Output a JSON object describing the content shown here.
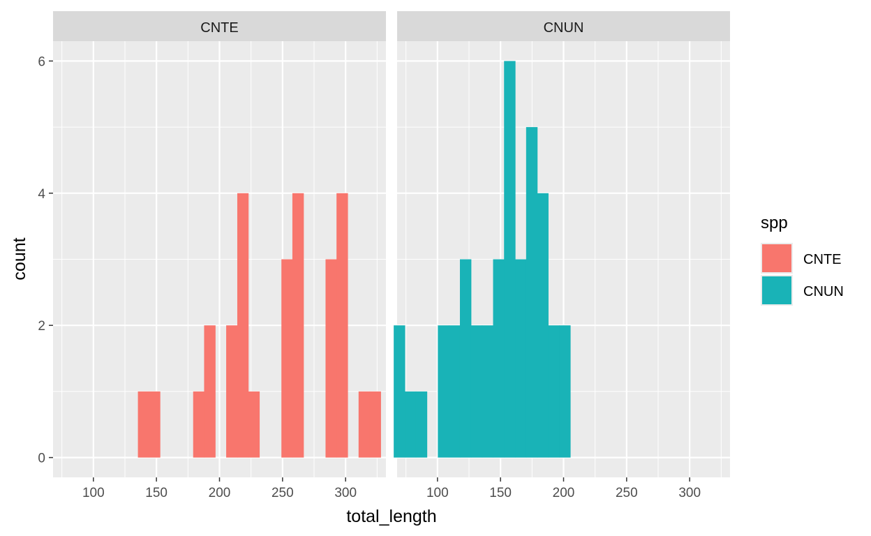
{
  "chart_data": {
    "type": "histogram",
    "xlabel": "total_length",
    "ylabel": "count",
    "xlim": [
      68,
      332
    ],
    "ylim": [
      -0.3,
      6.3
    ],
    "x_ticks": [
      100,
      150,
      200,
      250,
      300
    ],
    "y_ticks": [
      0,
      2,
      4,
      6
    ],
    "bin_width": 8.75,
    "grid": true,
    "legend": {
      "title": "spp",
      "position": "right"
    },
    "panels": [
      {
        "strip": "CNTE",
        "series": "CNTE",
        "bins": [
          {
            "x0": 135.3,
            "x1": 144.1,
            "count": 1
          },
          {
            "x0": 144.1,
            "x1": 152.8,
            "count": 1
          },
          {
            "x0": 179.1,
            "x1": 187.8,
            "count": 1
          },
          {
            "x0": 187.8,
            "x1": 196.6,
            "count": 2
          },
          {
            "x0": 205.3,
            "x1": 214.1,
            "count": 2
          },
          {
            "x0": 214.1,
            "x1": 222.8,
            "count": 4
          },
          {
            "x0": 222.8,
            "x1": 231.6,
            "count": 1
          },
          {
            "x0": 249.1,
            "x1": 257.8,
            "count": 3
          },
          {
            "x0": 257.8,
            "x1": 266.6,
            "count": 4
          },
          {
            "x0": 284.1,
            "x1": 292.8,
            "count": 3
          },
          {
            "x0": 292.8,
            "x1": 301.6,
            "count": 4
          },
          {
            "x0": 310.3,
            "x1": 319.1,
            "count": 1
          },
          {
            "x0": 319.1,
            "x1": 327.8,
            "count": 1
          }
        ]
      },
      {
        "strip": "CNUN",
        "series": "CNUN",
        "bins": [
          {
            "x0": 65.3,
            "x1": 74.1,
            "count": 2
          },
          {
            "x0": 74.1,
            "x1": 82.8,
            "count": 1
          },
          {
            "x0": 82.8,
            "x1": 91.6,
            "count": 1
          },
          {
            "x0": 100.3,
            "x1": 109.1,
            "count": 2
          },
          {
            "x0": 109.1,
            "x1": 117.8,
            "count": 2
          },
          {
            "x0": 117.8,
            "x1": 126.6,
            "count": 3
          },
          {
            "x0": 126.6,
            "x1": 135.3,
            "count": 2
          },
          {
            "x0": 135.3,
            "x1": 144.1,
            "count": 2
          },
          {
            "x0": 144.1,
            "x1": 152.8,
            "count": 3
          },
          {
            "x0": 152.8,
            "x1": 161.6,
            "count": 6
          },
          {
            "x0": 161.6,
            "x1": 170.3,
            "count": 3
          },
          {
            "x0": 170.3,
            "x1": 179.1,
            "count": 5
          },
          {
            "x0": 179.1,
            "x1": 187.8,
            "count": 4
          },
          {
            "x0": 187.8,
            "x1": 196.6,
            "count": 2
          },
          {
            "x0": 196.6,
            "x1": 205.3,
            "count": 2
          }
        ]
      }
    ],
    "series": [
      {
        "name": "CNTE",
        "color": "#F8766D"
      },
      {
        "name": "CNUN",
        "color": "#00BFC4"
      }
    ]
  },
  "colors": {
    "panel_background": "#EBEBEB",
    "strip_background": "#D9D9D9",
    "grid_line": "#FFFFFF",
    "CNTE": "#F8766D",
    "CNUN": "#19B3B7"
  }
}
